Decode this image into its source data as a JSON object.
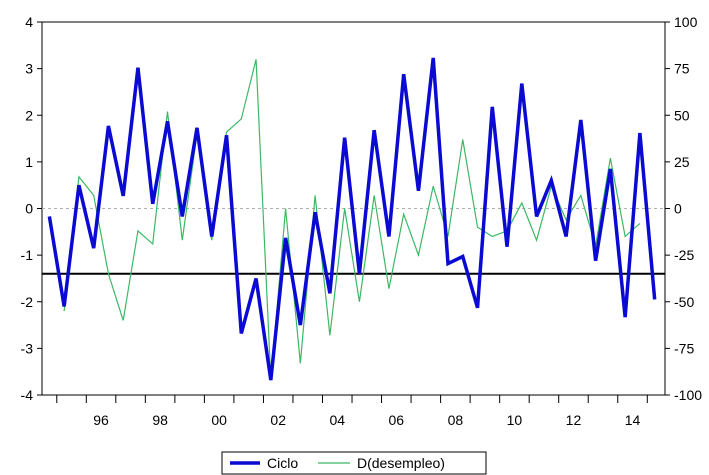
{
  "chart_data": {
    "type": "line",
    "title": "",
    "xlabel": "",
    "x_tick_labels": [
      "96",
      "98",
      "00",
      "02",
      "04",
      "06",
      "08",
      "10",
      "12",
      "14"
    ],
    "x_tick_positions": [
      1996,
      1998,
      2000,
      2002,
      2004,
      2006,
      2008,
      2010,
      2012,
      2014
    ],
    "xlim": [
      1994.5,
      2015.6
    ],
    "y_left": {
      "ylim": [
        -4,
        4
      ],
      "ticks": [
        -4,
        -3,
        -2,
        -1,
        0,
        1,
        2,
        3,
        4
      ]
    },
    "y_right": {
      "ylim": [
        -100,
        100
      ],
      "ticks": [
        -100,
        -75,
        -50,
        -25,
        0,
        25,
        50,
        75,
        100
      ]
    },
    "horizontal_line": {
      "axis": "left",
      "value": -1.4,
      "color": "#000000"
    },
    "zero_line": {
      "axis": "left",
      "value": 0,
      "style": "dashed",
      "color": "#b0b0b0"
    },
    "grid": false,
    "legend_position": "bottom-center",
    "x": [
      1994.75,
      1995.25,
      1995.75,
      1996.25,
      1996.75,
      1997.25,
      1997.75,
      1998.25,
      1998.75,
      1999.25,
      1999.75,
      2000.25,
      2000.75,
      2001.25,
      2001.75,
      2002.25,
      2002.75,
      2003.25,
      2003.75,
      2004.25,
      2004.75,
      2005.25,
      2005.75,
      2006.25,
      2006.75,
      2007.25,
      2007.75,
      2008.25,
      2008.75,
      2009.25,
      2009.75,
      2010.25,
      2010.75,
      2011.25,
      2011.75,
      2012.25,
      2012.75,
      2013.25,
      2013.75,
      2014.25,
      2014.75,
      2015.25
    ],
    "series": [
      {
        "name": "Ciclo",
        "axis": "left",
        "color": "#0a0ad2",
        "width": 3.5,
        "values": [
          -0.17,
          -2.1,
          0.5,
          -0.85,
          1.77,
          0.27,
          3.02,
          0.1,
          1.87,
          -0.17,
          1.73,
          -0.6,
          1.57,
          -2.68,
          -1.5,
          -3.68,
          -0.63,
          -2.5,
          -0.08,
          -1.82,
          1.52,
          -1.4,
          1.68,
          -0.6,
          2.88,
          0.38,
          3.23,
          -1.18,
          -1.03,
          -2.13,
          2.18,
          -0.82,
          2.68,
          -0.17,
          0.6,
          -0.6,
          1.9,
          -1.12,
          0.85,
          -2.33,
          1.62,
          -1.95
        ]
      },
      {
        "name": "D(desempleo)",
        "axis": "right",
        "color": "#3cb864",
        "width": 1.2,
        "values": [
          null,
          -55,
          17,
          7,
          -35,
          -60,
          -12,
          -19,
          52,
          -17,
          40,
          -17,
          41,
          48,
          80,
          -92,
          0,
          -83,
          7,
          -68,
          0,
          -50,
          7,
          -43,
          -3,
          -25,
          12,
          -15,
          37,
          -10,
          -15,
          -12,
          3,
          -17,
          12,
          -6,
          7,
          -20,
          27,
          -15,
          -8,
          null
        ]
      }
    ]
  }
}
